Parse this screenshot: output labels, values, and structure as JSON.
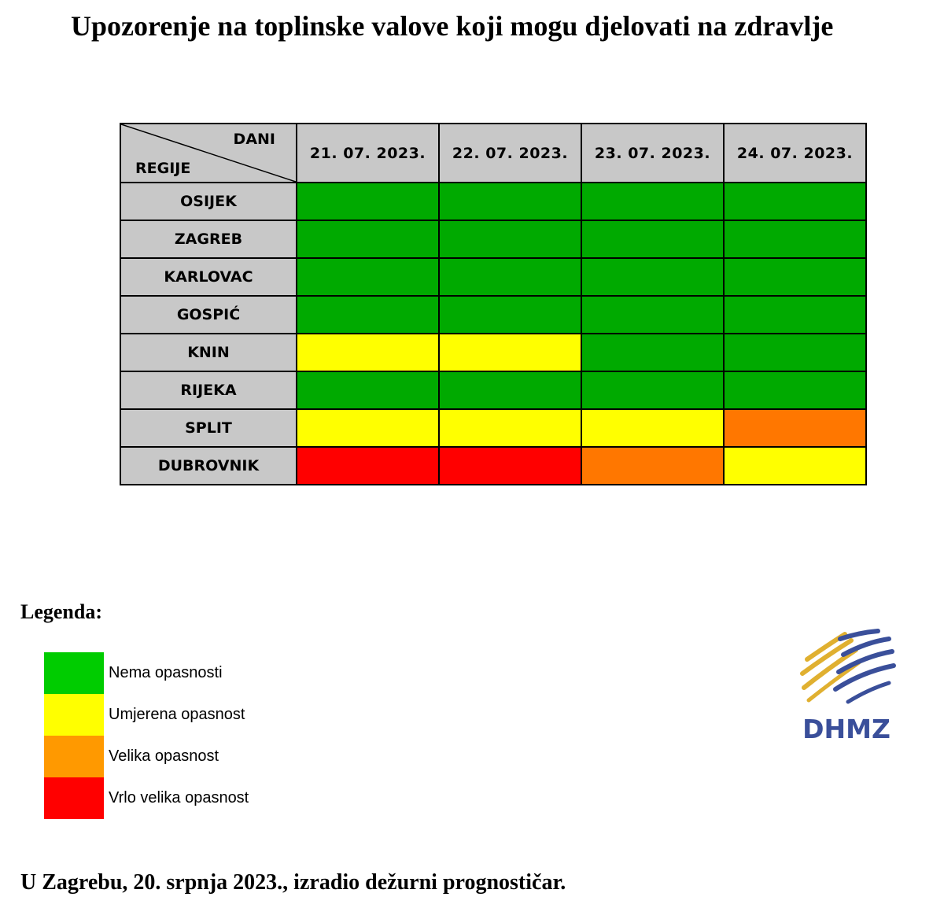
{
  "title": "Upozorenje na toplinske valove koji mogu djelovati na zdravlje",
  "table": {
    "corner_top": "DANI",
    "corner_bottom": "REGIJE",
    "dates": [
      "21. 07. 2023.",
      "22. 07. 2023.",
      "23. 07. 2023.",
      "24. 07. 2023."
    ],
    "rows": [
      {
        "region": "OSIJEK",
        "levels": [
          0,
          0,
          0,
          0
        ]
      },
      {
        "region": "ZAGREB",
        "levels": [
          0,
          0,
          0,
          0
        ]
      },
      {
        "region": "KARLOVAC",
        "levels": [
          0,
          0,
          0,
          0
        ]
      },
      {
        "region": "GOSPIĆ",
        "levels": [
          0,
          0,
          0,
          0
        ]
      },
      {
        "region": "KNIN",
        "levels": [
          1,
          1,
          0,
          0
        ]
      },
      {
        "region": "RIJEKA",
        "levels": [
          0,
          0,
          0,
          0
        ]
      },
      {
        "region": "SPLIT",
        "levels": [
          1,
          1,
          1,
          2
        ]
      },
      {
        "region": "DUBROVNIK",
        "levels": [
          3,
          3,
          2,
          1
        ]
      }
    ]
  },
  "level_colors": [
    "#00aa00",
    "#ffff00",
    "#ff7700",
    "#ff0000"
  ],
  "legend": {
    "title": "Legenda:",
    "items": [
      {
        "label": "Nema opasnosti",
        "color": "#00cc00"
      },
      {
        "label": "Umjerena opasnost",
        "color": "#ffff00"
      },
      {
        "label": "Velika opasnost",
        "color": "#ff9900"
      },
      {
        "label": "Vrlo velika opasnost",
        "color": "#ff0000"
      }
    ]
  },
  "logo": {
    "text": "DHMZ",
    "icon": "dhmz-logo-icon"
  },
  "footer": "U Zagrebu, 20. srpnja 2023., izradio dežurni prognostičar."
}
